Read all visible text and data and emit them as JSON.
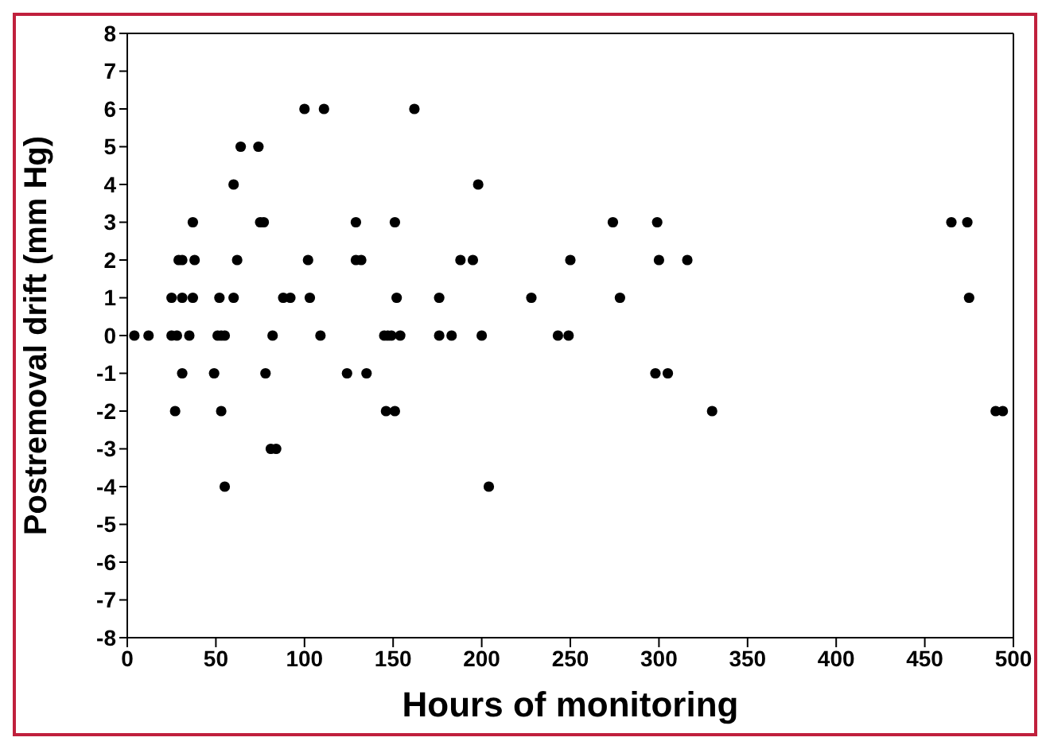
{
  "chart_data": {
    "type": "scatter",
    "xlabel": "Hours of monitoring",
    "ylabel": "Postremoval drift  (mm Hg)",
    "xlim": [
      0,
      500
    ],
    "xticks": [
      0,
      50,
      100,
      150,
      200,
      250,
      300,
      350,
      400,
      450,
      500
    ],
    "ylim": [
      -8,
      8
    ],
    "yticks": [
      -8,
      -7,
      -6,
      -5,
      -4,
      -3,
      -2,
      -1,
      0,
      1,
      2,
      3,
      4,
      5,
      6,
      7,
      8
    ],
    "grid": false,
    "legend": false,
    "marker": "circle",
    "series": [
      {
        "color": "#000000",
        "x": [
          100,
          111,
          162,
          64,
          74,
          60,
          198,
          37,
          75,
          77,
          129,
          151,
          274,
          299,
          465,
          474,
          29,
          31,
          38,
          62,
          102,
          129,
          132,
          188,
          195,
          250,
          300,
          316,
          25,
          31,
          37,
          52,
          60,
          88,
          92,
          103,
          152,
          176,
          228,
          278,
          475,
          4,
          12,
          25,
          28,
          35,
          51,
          53,
          55,
          82,
          109,
          145,
          147,
          149,
          154,
          176,
          183,
          200,
          243,
          249,
          31,
          49,
          78,
          124,
          135,
          298,
          305,
          27,
          53,
          146,
          151,
          330,
          490,
          494,
          81,
          84,
          55,
          204
        ],
        "values": [
          6,
          6,
          6,
          5,
          5,
          4,
          4,
          3,
          3,
          3,
          3,
          3,
          3,
          3,
          3,
          3,
          2,
          2,
          2,
          2,
          2,
          2,
          2,
          2,
          2,
          2,
          2,
          2,
          1,
          1,
          1,
          1,
          1,
          1,
          1,
          1,
          1,
          1,
          1,
          1,
          1,
          0,
          0,
          0,
          0,
          0,
          0,
          0,
          0,
          0,
          0,
          0,
          0,
          0,
          0,
          0,
          0,
          0,
          0,
          0,
          -1,
          -1,
          -1,
          -1,
          -1,
          -1,
          -1,
          -2,
          -2,
          -2,
          -2,
          -2,
          -2,
          -2,
          -3,
          -3,
          -4,
          -4
        ]
      }
    ]
  }
}
